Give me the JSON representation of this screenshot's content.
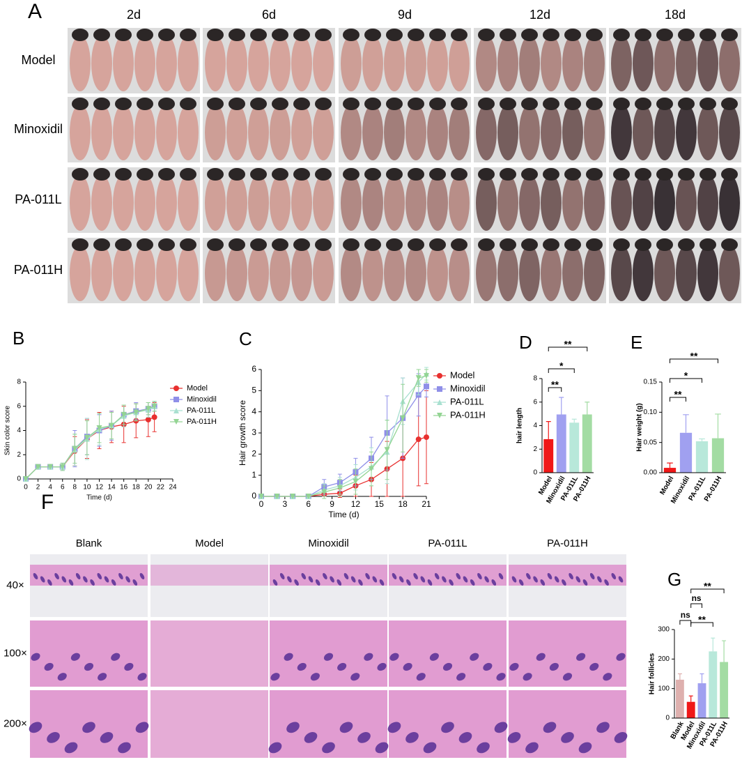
{
  "panel_a": {
    "label": "A",
    "columns": [
      "2d",
      "6d",
      "9d",
      "12d",
      "18d"
    ],
    "rows": [
      "Model",
      "Minoxidil",
      "PA-011L",
      "PA-011H"
    ]
  },
  "panel_f": {
    "label": "F",
    "columns": [
      "Blank",
      "Model",
      "Minoxidil",
      "PA-011L",
      "PA-011H"
    ],
    "rows": [
      "40×",
      "100×",
      "200×"
    ]
  },
  "chart_data": [
    {
      "type": "line",
      "panel": "B",
      "x_label": "Time (d)",
      "y_label": "Skin color score",
      "x": [
        0,
        2,
        4,
        6,
        8,
        10,
        12,
        14,
        16,
        18,
        20,
        21
      ],
      "xlim": [
        0,
        24
      ],
      "xticks": [
        0,
        2,
        4,
        6,
        8,
        10,
        12,
        14,
        16,
        18,
        20,
        22,
        24
      ],
      "ylim": [
        0,
        8
      ],
      "yticks": [
        0,
        2,
        4,
        6,
        8
      ],
      "grid": false,
      "legend": "right",
      "series": [
        {
          "name": "Model",
          "color": "#e8302f",
          "marker": "circle",
          "values": [
            0,
            1,
            1,
            1,
            2.3,
            3.3,
            4,
            4.3,
            4.5,
            4.8,
            4.9,
            5.1
          ],
          "errors": [
            0,
            0,
            0,
            0.2,
            1.2,
            1.6,
            1.5,
            1.3,
            1.5,
            1.4,
            1.4,
            1.2
          ]
        },
        {
          "name": "Minoxidil",
          "color": "#8f8fe8",
          "marker": "square",
          "values": [
            0,
            1,
            1,
            1,
            2.5,
            3.5,
            4,
            4.4,
            5.3,
            5.6,
            5.8,
            6
          ],
          "errors": [
            0,
            0,
            0,
            0.3,
            1.5,
            1.5,
            1.3,
            1.2,
            0.8,
            0.7,
            0.5,
            0.4
          ]
        },
        {
          "name": "PA-011L",
          "color": "#a8e0d0",
          "marker": "triangle-up",
          "values": [
            0,
            1,
            1,
            1,
            2.4,
            3.3,
            4.1,
            4.4,
            5.2,
            5.5,
            5.7,
            6
          ],
          "errors": [
            0,
            0,
            0,
            0.3,
            1.3,
            1.7,
            1.3,
            1.1,
            0.9,
            0.7,
            0.6,
            0.4
          ]
        },
        {
          "name": "PA-011H",
          "color": "#93d493",
          "marker": "triangle-down",
          "values": [
            0,
            1,
            1,
            1,
            2.5,
            3.4,
            4.2,
            4.4,
            5.3,
            5.5,
            5.8,
            6
          ],
          "errors": [
            0,
            0,
            0,
            0.3,
            1.2,
            1.4,
            1.2,
            1.1,
            0.8,
            0.7,
            0.5,
            0.4
          ]
        }
      ]
    },
    {
      "type": "line",
      "panel": "C",
      "x_label": "Time (d)",
      "y_label": "Hair growth score",
      "x": [
        0,
        2,
        4,
        6,
        8,
        10,
        12,
        14,
        16,
        18,
        20,
        21
      ],
      "xlim": [
        0,
        21
      ],
      "xticks": [
        0,
        3,
        6,
        9,
        12,
        15,
        18,
        21
      ],
      "ylim": [
        0,
        6
      ],
      "yticks": [
        0,
        1,
        2,
        3,
        4,
        5,
        6
      ],
      "grid": false,
      "legend": "right",
      "series": [
        {
          "name": "Model",
          "color": "#e8302f",
          "marker": "circle",
          "values": [
            0,
            0,
            0,
            0,
            0.1,
            0.15,
            0.5,
            0.8,
            1.3,
            1.8,
            2.7,
            2.8
          ],
          "errors": [
            0,
            0,
            0,
            0,
            0.1,
            0.2,
            0.5,
            0.8,
            1.3,
            1.8,
            2.2,
            2.2
          ]
        },
        {
          "name": "Minoxidil",
          "color": "#8f8fe8",
          "marker": "square",
          "values": [
            0,
            0,
            0,
            0,
            0.45,
            0.65,
            1.15,
            1.8,
            3,
            3.7,
            4.8,
            5.2
          ],
          "errors": [
            0,
            0,
            0,
            0,
            0.35,
            0.4,
            0.65,
            1,
            1.75,
            1.9,
            1,
            0.5
          ]
        },
        {
          "name": "PA-011L",
          "color": "#a8e0d0",
          "marker": "triangle-up",
          "values": [
            0,
            0,
            0,
            0,
            0.3,
            0.5,
            0.9,
            1.4,
            2.1,
            4.5,
            5.4,
            5.8
          ],
          "errors": [
            0,
            0,
            0,
            0,
            0.3,
            0.4,
            0.6,
            0.9,
            1.5,
            1.1,
            0.6,
            0.3
          ]
        },
        {
          "name": "PA-011H",
          "color": "#93d493",
          "marker": "triangle-down",
          "values": [
            0,
            0,
            0,
            0,
            0.2,
            0.4,
            0.7,
            1.3,
            2.2,
            3.7,
            5.6,
            5.7
          ],
          "errors": [
            0,
            0,
            0,
            0,
            0.3,
            0.4,
            0.6,
            0.8,
            1.4,
            1.6,
            0.4,
            0.3
          ]
        }
      ]
    },
    {
      "type": "bar",
      "panel": "D",
      "y_label": "hair length",
      "categories": [
        "Model",
        "Minoxidil",
        "PA-011L",
        "PA-011H"
      ],
      "values": [
        2.85,
        4.95,
        4.25,
        4.95
      ],
      "errors": [
        1.5,
        1.45,
        0.3,
        1.05
      ],
      "colors": [
        "#f01818",
        "#a0a0f0",
        "#b8e8da",
        "#a3dca3"
      ],
      "ylim": [
        0,
        8
      ],
      "yticks": [
        0,
        2,
        4,
        6,
        8
      ],
      "grid": false,
      "comparisons": [
        {
          "label": "**",
          "groups": [
            "Model",
            "Minoxidil"
          ]
        },
        {
          "label": "*",
          "groups": [
            "Model",
            "PA-011L"
          ]
        },
        {
          "label": "**",
          "groups": [
            "Model",
            "PA-011H"
          ]
        }
      ]
    },
    {
      "type": "bar",
      "panel": "E",
      "y_label": "Hair weight (g)",
      "categories": [
        "Model",
        "Minoxidil",
        "PA-011L",
        "PA-011H"
      ],
      "values": [
        0.008,
        0.066,
        0.052,
        0.057
      ],
      "errors": [
        0.008,
        0.03,
        0.004,
        0.04
      ],
      "colors": [
        "#f01818",
        "#a0a0f0",
        "#b8e8da",
        "#a3dca3"
      ],
      "ylim": [
        0,
        0.15
      ],
      "yticks": [
        {
          "value": 0,
          "label": "0.00"
        },
        0.05,
        {
          "value": 0.1,
          "label": "0.10"
        },
        0.15
      ],
      "grid": false,
      "comparisons": [
        {
          "label": "**",
          "groups": [
            "Model",
            "Minoxidil"
          ]
        },
        {
          "label": "*",
          "groups": [
            "Model",
            "PA-011L"
          ]
        },
        {
          "label": "**",
          "groups": [
            "Model",
            "PA-011H"
          ]
        }
      ]
    },
    {
      "type": "bar",
      "panel": "G",
      "y_label": "Hair follicles",
      "categories": [
        "Blank",
        "Model",
        "Minoxidil",
        "PA-011L",
        "PA-011H"
      ],
      "values": [
        130,
        55,
        118,
        226,
        190
      ],
      "errors": [
        20,
        20,
        32,
        45,
        72
      ],
      "colors": [
        "#deb0ae",
        "#f01818",
        "#a0a0f0",
        "#b8e8da",
        "#a3dca3"
      ],
      "ylim": [
        0,
        300
      ],
      "yticks": [
        0,
        100,
        200,
        300
      ],
      "grid": false,
      "comparisons": [
        {
          "label": "ns",
          "groups": [
            "Blank",
            "Model"
          ]
        },
        {
          "label": "ns",
          "groups": [
            "Model",
            "Minoxidil"
          ]
        },
        {
          "label": "**",
          "groups": [
            "Model",
            "PA-011L"
          ]
        },
        {
          "label": "**",
          "groups": [
            "Model",
            "PA-011H"
          ]
        }
      ]
    }
  ]
}
